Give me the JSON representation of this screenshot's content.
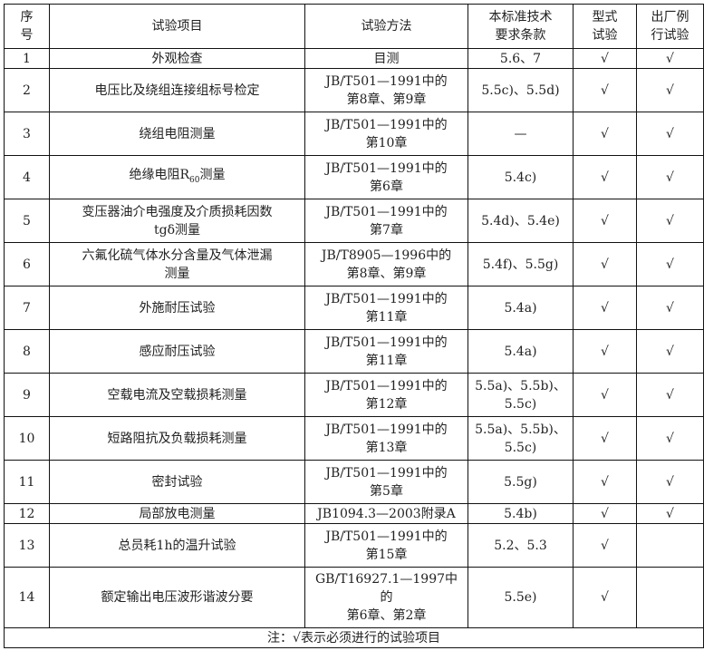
{
  "headers": [
    "序号",
    "试验项目",
    "试验方法",
    "本标准技术要求条款",
    "型式试验",
    "出厂例行试验"
  ],
  "header_lines": {
    "seq": [
      "序",
      "号"
    ],
    "clause": [
      "本标准技术",
      "要求条款"
    ],
    "type": [
      "型式",
      "试验"
    ],
    "routine": [
      "出厂例",
      "行试验"
    ]
  },
  "rows": [
    {
      "no": "1",
      "item": "外观检查",
      "method": [
        "目测"
      ],
      "clause": [
        "5.6、7"
      ],
      "type_test": "√",
      "routine_test": "√"
    },
    {
      "no": "2",
      "item": "电压比及绕组连接组标号检定",
      "method": [
        "JB/T501—1991中的",
        "第8章、第9章"
      ],
      "clause": [
        "5.5c)、5.5d)"
      ],
      "type_test": "√",
      "routine_test": "√"
    },
    {
      "no": "3",
      "item": "绕组电阻测量",
      "method": [
        "JB/T501—1991中的",
        "第10章"
      ],
      "clause": [
        "—"
      ],
      "type_test": "√",
      "routine_test": "√"
    },
    {
      "no": "4",
      "item": "绝缘电阻R",
      "item_sub": "60",
      "item_tail": "测量",
      "method": [
        "JB/T501—1991中的",
        "第6章"
      ],
      "clause": [
        "5.4c)"
      ],
      "type_test": "√",
      "routine_test": "√"
    },
    {
      "no": "5",
      "item": "变压器油介电强度及介质损耗因数",
      "item2": "tgδ测量",
      "method": [
        "JB/T501—1991中的",
        "第7章"
      ],
      "clause": [
        "5.4d)、5.4e)"
      ],
      "type_test": "√",
      "routine_test": "√"
    },
    {
      "no": "6",
      "item": "六氟化硫气体水分含量及气体泄漏",
      "item2": "测量",
      "method": [
        "JB/T8905—1996中的",
        "第8章、第9章"
      ],
      "clause": [
        "5.4f)、5.5g)"
      ],
      "type_test": "√",
      "routine_test": "√"
    },
    {
      "no": "7",
      "item": "外施耐压试验",
      "method": [
        "JB/T501—1991中的",
        "第11章"
      ],
      "clause": [
        "5.4a)"
      ],
      "type_test": "√",
      "routine_test": "√"
    },
    {
      "no": "8",
      "item": "感应耐压试验",
      "method": [
        "JB/T501—1991中的",
        "第11章"
      ],
      "clause": [
        "5.4a)"
      ],
      "type_test": "√",
      "routine_test": "√"
    },
    {
      "no": "9",
      "item": "空载电流及空载损耗测量",
      "method": [
        "JB/T501—1991中的",
        "第12章"
      ],
      "clause": [
        "5.5a)、5.5b)、",
        "5.5c)"
      ],
      "type_test": "√",
      "routine_test": "√"
    },
    {
      "no": "10",
      "item": "短路阻抗及负载损耗测量",
      "method": [
        "JB/T501—1991中的",
        "第13章"
      ],
      "clause": [
        "5.5a)、5.5b)、",
        "5.5c)"
      ],
      "type_test": "√",
      "routine_test": "√"
    },
    {
      "no": "11",
      "item": "密封试验",
      "method": [
        "JB/T501—1991中的",
        "第5章"
      ],
      "clause": [
        "5.5g)"
      ],
      "type_test": "√",
      "routine_test": "√"
    },
    {
      "no": "12",
      "item": "局部放电测量",
      "method": [
        "JB1094.3—2003附录A"
      ],
      "clause": [
        "5.4b)"
      ],
      "type_test": "√",
      "routine_test": "√"
    },
    {
      "no": "13",
      "item": "总员耗1h的温升试验",
      "method": [
        "JB/T501—1991中的",
        "第15章"
      ],
      "clause": [
        "5.2、5.3"
      ],
      "type_test": "√",
      "routine_test": ""
    },
    {
      "no": "14",
      "item": "额定输出电压波形谐波分要",
      "method": [
        "GB/T16927.1—1997中",
        "的",
        "第6章、第2章"
      ],
      "clause": [
        "5.5e)"
      ],
      "type_test": "√",
      "routine_test": ""
    }
  ],
  "note": "注：√表示必须进行的试验项目"
}
